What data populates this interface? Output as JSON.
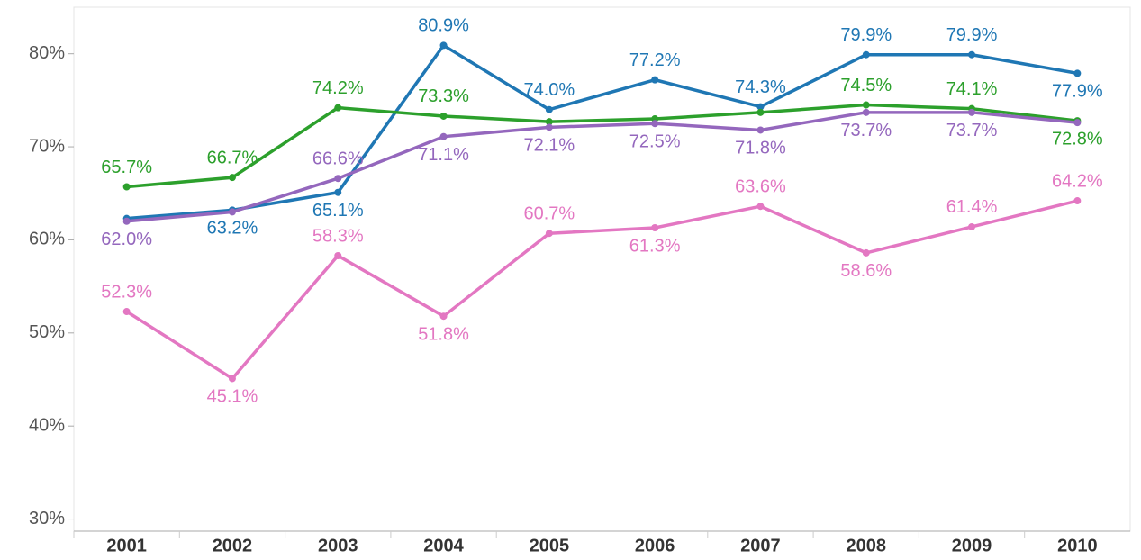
{
  "chart_data": {
    "type": "line",
    "categories": [
      "2001",
      "2002",
      "2003",
      "2004",
      "2005",
      "2006",
      "2007",
      "2008",
      "2009",
      "2010"
    ],
    "series": [
      {
        "color": "#1f77b4",
        "values": [
          62.3,
          63.2,
          65.1,
          80.9,
          74.0,
          77.2,
          74.3,
          79.9,
          79.9,
          77.9
        ],
        "value_labels": [
          null,
          "63.2%",
          "65.1%",
          "80.9%",
          "74.0%",
          "77.2%",
          "74.3%",
          "79.9%",
          "79.9%",
          "77.9%"
        ]
      },
      {
        "color": "#2ca02c",
        "values": [
          65.7,
          66.7,
          74.2,
          73.3,
          72.7,
          73.0,
          73.7,
          74.5,
          74.1,
          72.8
        ],
        "value_labels": [
          "65.7%",
          "66.7%",
          "74.2%",
          "73.3%",
          null,
          null,
          null,
          "74.5%",
          "74.1%",
          "72.8%"
        ]
      },
      {
        "color": "#9467bd",
        "values": [
          62.0,
          63.0,
          66.6,
          71.1,
          72.1,
          72.5,
          71.8,
          73.7,
          73.7,
          72.6
        ],
        "value_labels": [
          "62.0%",
          null,
          "66.6%",
          "71.1%",
          "72.1%",
          "72.5%",
          "71.8%",
          "73.7%",
          "73.7%",
          null
        ]
      },
      {
        "color": "#e377c2",
        "values": [
          52.3,
          45.1,
          58.3,
          51.8,
          60.7,
          61.3,
          63.6,
          58.6,
          61.4,
          64.2
        ],
        "value_labels": [
          "52.3%",
          "45.1%",
          "58.3%",
          "51.8%",
          "60.7%",
          "61.3%",
          "63.6%",
          "58.6%",
          "61.4%",
          "64.2%"
        ]
      }
    ],
    "ylim": [
      28.7,
      85
    ],
    "yticks": [
      {
        "value": 30,
        "label": "30%"
      },
      {
        "value": 40,
        "label": "40%"
      },
      {
        "value": 50,
        "label": "50%"
      },
      {
        "value": 60,
        "label": "60%"
      },
      {
        "value": 70,
        "label": "70%"
      },
      {
        "value": 80,
        "label": "80%"
      }
    ],
    "grid": false
  }
}
